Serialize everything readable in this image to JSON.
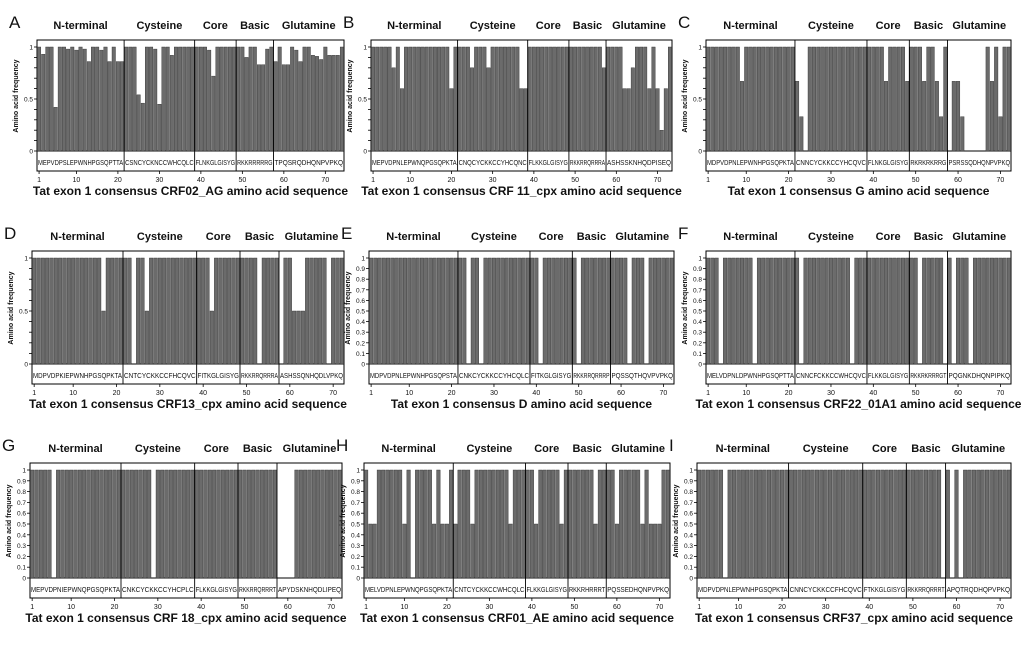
{
  "colors": {
    "bar": "#6b6b6b",
    "bar_stroke": "#2e2e2e",
    "frame": "#000000",
    "text": "#111111"
  },
  "common": {
    "region_labels": [
      "N-terminal",
      "Cysteine",
      "Core",
      "Basic",
      "Glutamine"
    ],
    "ylabel": "Amino acid frequency",
    "x_ticks": [
      1,
      10,
      20,
      30,
      40,
      50,
      60,
      70
    ],
    "y_ticks": [
      "0",
      "0.1",
      "0.2",
      "0.3",
      "0.4",
      "0.5",
      "0.6",
      "0.7",
      "0.8",
      "0.9",
      "1"
    ]
  },
  "chart_data": [
    {
      "panel": "A",
      "type": "bar",
      "ylim": [
        0,
        1
      ],
      "n": 74,
      "title": "",
      "xlabel": "Tat exon 1 consensus CRF02_AG amino acid sequence",
      "ytick_labels": [
        "0",
        "",
        "",
        "",
        "",
        "0.5",
        "",
        "",
        "",
        "",
        "1"
      ],
      "region_boundaries": [
        21,
        38,
        48,
        57
      ],
      "seq_labels": [
        "MEPVDPSLEPWNHPGSQPTTA",
        "CSNCYCKNCCWHCQLC",
        "FLNKGLGISYG",
        "RKKRRRRRG",
        "TPQSRQDHQNPVPKQ"
      ],
      "values": [
        1,
        0.93,
        1,
        1,
        0.42,
        1,
        1,
        0.98,
        1,
        0.97,
        1,
        0.98,
        0.86,
        1,
        1,
        0.97,
        1,
        0.86,
        1,
        0.86,
        0.86,
        1,
        1,
        1,
        0.54,
        0.46,
        1,
        1,
        0.98,
        0.45,
        1,
        1,
        0.92,
        1,
        1,
        1,
        1,
        1,
        1,
        1,
        1,
        0.97,
        0.72,
        1,
        1,
        1,
        1,
        1,
        1,
        1,
        0.9,
        1,
        1,
        0.83,
        0.83,
        0.98,
        1,
        0.86,
        1,
        0.83,
        0.83,
        1,
        0.97,
        0.86,
        1,
        1,
        0.92,
        0.91,
        0.88,
        1,
        0.92,
        0.92,
        0.92,
        1
      ]
    },
    {
      "panel": "B",
      "type": "bar",
      "ylim": [
        0,
        1
      ],
      "n": 73,
      "title": "",
      "xlabel": "Tat exon 1 consensus CRF 11_cpx amino acid sequence",
      "ytick_labels": [
        "0",
        "",
        "",
        "",
        "",
        "0.5",
        "",
        "",
        "",
        "",
        "1"
      ],
      "region_boundaries": [
        21,
        38,
        48,
        57
      ],
      "seq_labels": [
        "MEPVDPNLEPWNQPGSQPKTA",
        "CNQCYCKKCCYHCQNC",
        "FLKKGLGISYG",
        "RKKRRQRRRA",
        "ASHSSKNHQDPISEQ"
      ],
      "values": [
        1,
        1,
        1,
        1,
        1,
        0.8,
        1,
        0.6,
        1,
        1,
        1,
        1,
        1,
        1,
        1,
        1,
        1,
        1,
        1,
        0.6,
        1,
        1,
        1,
        1,
        0.8,
        1,
        1,
        1,
        0.8,
        1,
        1,
        1,
        1,
        1,
        1,
        1,
        0.6,
        0.6,
        1,
        1,
        1,
        1,
        1,
        1,
        1,
        1,
        1,
        1,
        1,
        1,
        1,
        1,
        1,
        1,
        1,
        1,
        0.8,
        1,
        1,
        1,
        1,
        0.6,
        0.6,
        0.8,
        1,
        1,
        1,
        0.6,
        1,
        0.6,
        0.2,
        0.6,
        1
      ]
    },
    {
      "panel": "C",
      "type": "bar",
      "ylim": [
        0,
        1
      ],
      "n": 72,
      "title": "",
      "xlabel": "Tat exon 1 consensus G amino acid sequence",
      "ytick_labels": [
        "0",
        "",
        "",
        "",
        "",
        "0.5",
        "",
        "",
        "",
        "",
        "1"
      ],
      "region_boundaries": [
        21,
        38,
        48,
        57
      ],
      "seq_labels": [
        "MDPVDPNLEPWNHPGSQPKTA",
        "CNNCYCKKCCYHCQVC",
        "FLNKGLGISYG",
        "RKRKRKRRG",
        "PSRSSQDHQNPVPKQ"
      ],
      "values": [
        1,
        1,
        1,
        1,
        1,
        1,
        1,
        1,
        0.67,
        1,
        1,
        1,
        1,
        1,
        1,
        1,
        1,
        1,
        1,
        1,
        1,
        0.67,
        0.33,
        0,
        1,
        1,
        1,
        1,
        1,
        1,
        1,
        1,
        1,
        1,
        1,
        1,
        1,
        1,
        1,
        1,
        1,
        1,
        0.67,
        1,
        1,
        1,
        1,
        0.67,
        1,
        1,
        1,
        0.67,
        1,
        1,
        0.67,
        0.33,
        1,
        0,
        0.67,
        0.67,
        0.33,
        0,
        0,
        0,
        0,
        0,
        1,
        0.67,
        1,
        0.33,
        1,
        1
      ]
    },
    {
      "panel": "D",
      "type": "bar",
      "ylim": [
        0,
        1
      ],
      "n": 72,
      "title": "",
      "xlabel": "Tat exon 1 consensus CRF13_cpx amino acid sequence",
      "ytick_labels": [
        "0",
        "",
        "",
        "",
        "",
        "0.5",
        "",
        "",
        "",
        "",
        "1"
      ],
      "region_boundaries": [
        21,
        38,
        48,
        57
      ],
      "seq_labels": [
        "MDPVDPKIEPWNHPGSQPKTA",
        "CNTCYCKKCCFHCQVC",
        "FITKGLGISYG",
        "RKKRRQRRRA",
        "ASHSSQNHQDLVPKQ"
      ],
      "values": [
        1,
        1,
        1,
        1,
        1,
        1,
        1,
        1,
        1,
        1,
        1,
        1,
        1,
        1,
        1,
        1,
        0.5,
        1,
        1,
        1,
        1,
        1,
        1,
        0,
        1,
        1,
        0.5,
        1,
        1,
        1,
        1,
        1,
        1,
        1,
        1,
        1,
        1,
        1,
        1,
        1,
        1,
        0.5,
        1,
        1,
        1,
        1,
        1,
        1,
        1,
        1,
        1,
        1,
        0,
        1,
        1,
        1,
        1,
        0,
        1,
        1,
        0.5,
        0.5,
        0.5,
        1,
        1,
        1,
        1,
        1,
        0,
        1,
        1,
        1
      ]
    },
    {
      "panel": "E",
      "type": "bar",
      "ylim": [
        0,
        1
      ],
      "n": 72,
      "title": "",
      "xlabel": "Tat exon 1 consensus D amino acid sequence",
      "ytick_labels": [
        "0",
        "0.1",
        "0.2",
        "0.3",
        "0.4",
        "0.5",
        "0.6",
        "0.7",
        "0.8",
        "0.9",
        "1"
      ],
      "region_boundaries": [
        21,
        38,
        48,
        57
      ],
      "seq_labels": [
        "MDPVDPNLEPWNHPGSQPSTA",
        "CNKCYCKKCCYHCQLC",
        "FITKGLGISYG",
        "RKKRRQRRRP",
        "PQSSQTHQVPVPKQ"
      ],
      "values": [
        1,
        1,
        1,
        1,
        1,
        1,
        1,
        1,
        1,
        1,
        1,
        1,
        1,
        1,
        1,
        1,
        1,
        1,
        1,
        1,
        1,
        1,
        1,
        0,
        1,
        1,
        0,
        1,
        1,
        1,
        1,
        1,
        1,
        1,
        1,
        1,
        1,
        1,
        1,
        1,
        0,
        1,
        1,
        1,
        1,
        1,
        1,
        1,
        1,
        0,
        1,
        1,
        1,
        1,
        1,
        1,
        1,
        1,
        1,
        1,
        1,
        0,
        1,
        1,
        1,
        0,
        1,
        1,
        1,
        1,
        1,
        1
      ]
    },
    {
      "panel": "F",
      "type": "bar",
      "ylim": [
        0,
        1
      ],
      "n": 72,
      "title": "",
      "xlabel": "Tat exon 1 consensus CRF22_01A1 amino acid sequence",
      "ytick_labels": [
        "0",
        "0.1",
        "0.2",
        "0.3",
        "0.4",
        "0.5",
        "0.6",
        "0.7",
        "0.8",
        "0.9",
        "1"
      ],
      "region_boundaries": [
        21,
        38,
        48,
        57
      ],
      "seq_labels": [
        "MELVDPNLDPWNHPGSQPTTA",
        "CNNCFCKKCCWHCQVC",
        "FLKKGLGISYG",
        "RKKRKRRRGT",
        "PQGNKDHQNPIPKQ"
      ],
      "values": [
        1,
        1,
        1,
        0,
        1,
        1,
        1,
        1,
        1,
        1,
        1,
        0,
        1,
        1,
        1,
        1,
        1,
        1,
        1,
        1,
        1,
        1,
        0,
        1,
        1,
        1,
        1,
        1,
        1,
        1,
        1,
        1,
        1,
        1,
        0,
        1,
        1,
        1,
        1,
        1,
        1,
        1,
        1,
        1,
        1,
        1,
        1,
        1,
        1,
        1,
        0,
        1,
        1,
        1,
        1,
        1,
        0,
        1,
        0,
        1,
        1,
        1,
        0,
        1,
        1,
        1,
        1,
        1,
        1,
        1,
        1,
        1
      ]
    },
    {
      "panel": "G",
      "type": "bar",
      "ylim": [
        0,
        1
      ],
      "n": 72,
      "title": "",
      "xlabel": "Tat exon 1 consensus CRF 18_cpx amino acid sequence",
      "ytick_labels": [
        "0",
        "0.1",
        "0.2",
        "0.3",
        "0.4",
        "0.5",
        "0.6",
        "0.7",
        "0.8",
        "0.9",
        "1"
      ],
      "region_boundaries": [
        21,
        38,
        48,
        57
      ],
      "seq_labels": [
        "MEPVDPNIEPWNQPGSQPKTA",
        "CNKCYCKKCCYHCPLC",
        "FLKKGLGISYG",
        "RKKRRQRRRT",
        "APYDSKNHQDLIPEQ"
      ],
      "values": [
        1,
        1,
        1,
        1,
        1,
        0,
        1,
        1,
        1,
        1,
        1,
        1,
        1,
        1,
        1,
        1,
        1,
        1,
        1,
        1,
        1,
        1,
        1,
        1,
        1,
        1,
        1,
        1,
        0,
        1,
        1,
        1,
        1,
        1,
        1,
        1,
        1,
        1,
        1,
        1,
        1,
        1,
        1,
        1,
        1,
        1,
        1,
        1,
        1,
        1,
        1,
        1,
        1,
        1,
        1,
        1,
        1,
        0,
        0,
        0,
        0,
        1,
        1,
        1,
        1,
        1,
        1,
        1,
        1,
        1,
        1,
        1
      ]
    },
    {
      "panel": "H",
      "type": "bar",
      "ylim": [
        0,
        1
      ],
      "n": 72,
      "title": "",
      "xlabel": "Tat exon 1 consensus CRF01_AE amino acid sequence",
      "ytick_labels": [
        "0",
        "0.1",
        "0.2",
        "0.3",
        "0.4",
        "0.5",
        "0.6",
        "0.7",
        "0.8",
        "0.9",
        "1"
      ],
      "region_boundaries": [
        21,
        38,
        48,
        57
      ],
      "seq_labels": [
        "MELVDPNLEPWNQPGSQPKTA",
        "CNTCYCKKCCWHCQLC",
        "FLKKGLGISYG",
        "RKKRHRRRT",
        "PQSSEDHQNPVPKQ"
      ],
      "values": [
        1,
        0.5,
        0.5,
        1,
        1,
        1,
        1,
        1,
        1,
        0.5,
        1,
        0,
        1,
        1,
        1,
        1,
        0.5,
        1,
        0.5,
        0.5,
        1,
        0.5,
        1,
        1,
        1,
        0.5,
        1,
        1,
        1,
        1,
        1,
        1,
        1,
        1,
        0.5,
        1,
        1,
        1,
        1,
        1,
        0.5,
        1,
        1,
        1,
        1,
        1,
        0.5,
        1,
        1,
        1,
        1,
        1,
        1,
        1,
        0.5,
        1,
        1,
        1,
        1,
        0.5,
        1,
        1,
        1,
        1,
        1,
        0.5,
        1,
        0.5,
        0.5,
        0.5,
        1,
        1
      ]
    },
    {
      "panel": "I",
      "type": "bar",
      "ylim": [
        0,
        1
      ],
      "n": 72,
      "title": "",
      "xlabel": "Tat exon 1 consensus CRF37_cpx amino acid sequence",
      "ytick_labels": [
        "0",
        "0.1",
        "0.2",
        "0.3",
        "0.4",
        "0.5",
        "0.6",
        "0.7",
        "0.8",
        "0.9",
        "1"
      ],
      "region_boundaries": [
        21,
        38,
        48,
        57
      ],
      "seq_labels": [
        "MDPVDPNLEPWNHPGSQPKTA",
        "CNNCYCKKCCFHCQVC",
        "FTKKGLGISYG",
        "RKKRRQRRRT",
        "APQTRQDHQPVPKQ"
      ],
      "values": [
        1,
        1,
        1,
        1,
        1,
        1,
        0,
        1,
        1,
        1,
        1,
        1,
        1,
        1,
        1,
        1,
        1,
        1,
        1,
        1,
        1,
        1,
        1,
        1,
        1,
        1,
        1,
        1,
        1,
        1,
        1,
        1,
        1,
        1,
        1,
        1,
        1,
        1,
        1,
        1,
        1,
        1,
        1,
        1,
        1,
        1,
        1,
        1,
        1,
        1,
        1,
        1,
        1,
        1,
        1,
        1,
        0,
        1,
        0,
        1,
        0,
        1,
        1,
        1,
        1,
        1,
        1,
        1,
        1,
        1,
        1,
        1
      ]
    }
  ]
}
